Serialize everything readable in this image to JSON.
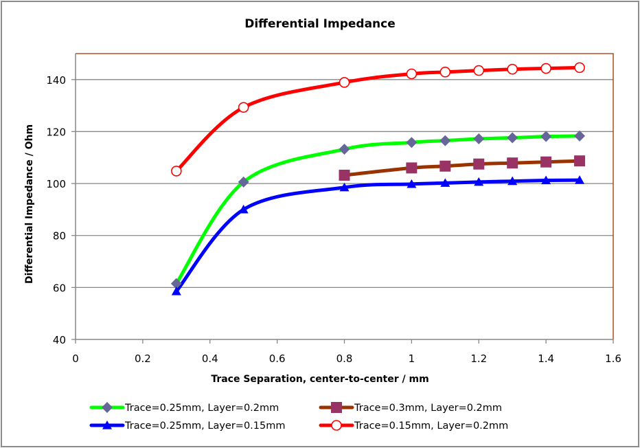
{
  "chart_data": {
    "type": "line",
    "title": "Differential Impedance",
    "xlabel": "Trace Separation, center-to-center / mm",
    "ylabel": "Differential Impedance / Ohm",
    "xlim": [
      0,
      1.6
    ],
    "ylim": [
      40,
      150
    ],
    "xticks": [
      0,
      0.2,
      0.4,
      0.6,
      0.8,
      1,
      1.2,
      1.4,
      1.6
    ],
    "xtick_labels": [
      "0",
      "0.2",
      "0.4",
      "0.6",
      "0.8",
      "1",
      "1.2",
      "1.4",
      "1.6"
    ],
    "yticks": [
      40,
      60,
      80,
      100,
      120,
      140
    ],
    "ytick_labels": [
      "40",
      "60",
      "80",
      "100",
      "120",
      "140"
    ],
    "grid": "horizontal",
    "smooth": true,
    "legend_position": "bottom",
    "series": [
      {
        "name": "Trace=0.25mm, Layer=0.2mm",
        "line_color": "#00ff00",
        "marker": "diamond",
        "marker_color": "#666699",
        "x": [
          0.3,
          0.5,
          0.8,
          1.0,
          1.1,
          1.2,
          1.3,
          1.4,
          1.5
        ],
        "y": [
          61.5,
          100.6,
          113.2,
          115.8,
          116.5,
          117.2,
          117.6,
          118.1,
          118.3
        ]
      },
      {
        "name": "Trace=0.3mm, Layer=0.2mm",
        "line_color": "#993300",
        "marker": "square",
        "marker_color": "#993366",
        "x": [
          0.8,
          1.0,
          1.1,
          1.2,
          1.3,
          1.4,
          1.5
        ],
        "y": [
          103.2,
          106.0,
          106.7,
          107.5,
          107.9,
          108.3,
          108.7
        ]
      },
      {
        "name": "Trace=0.25mm, Layer=0.15mm",
        "line_color": "#0000ff",
        "marker": "triangle",
        "marker_color": "#0000ff",
        "x": [
          0.3,
          0.5,
          0.8,
          1.0,
          1.1,
          1.2,
          1.3,
          1.4,
          1.5
        ],
        "y": [
          58.5,
          90.0,
          98.5,
          99.8,
          100.2,
          100.6,
          100.9,
          101.2,
          101.3
        ]
      },
      {
        "name": "Trace=0.15mm, Layer=0.2mm",
        "line_color": "#ff0000",
        "marker": "circle-open",
        "marker_color": "#ff0000",
        "x": [
          0.3,
          0.5,
          0.8,
          1.0,
          1.1,
          1.2,
          1.3,
          1.4,
          1.5
        ],
        "y": [
          104.8,
          129.3,
          138.9,
          142.2,
          142.9,
          143.5,
          144.0,
          144.3,
          144.6
        ]
      }
    ]
  },
  "colors": {
    "gridline": "#868686",
    "plot_border": "#993300",
    "frame_border": "#8c8c8c"
  }
}
